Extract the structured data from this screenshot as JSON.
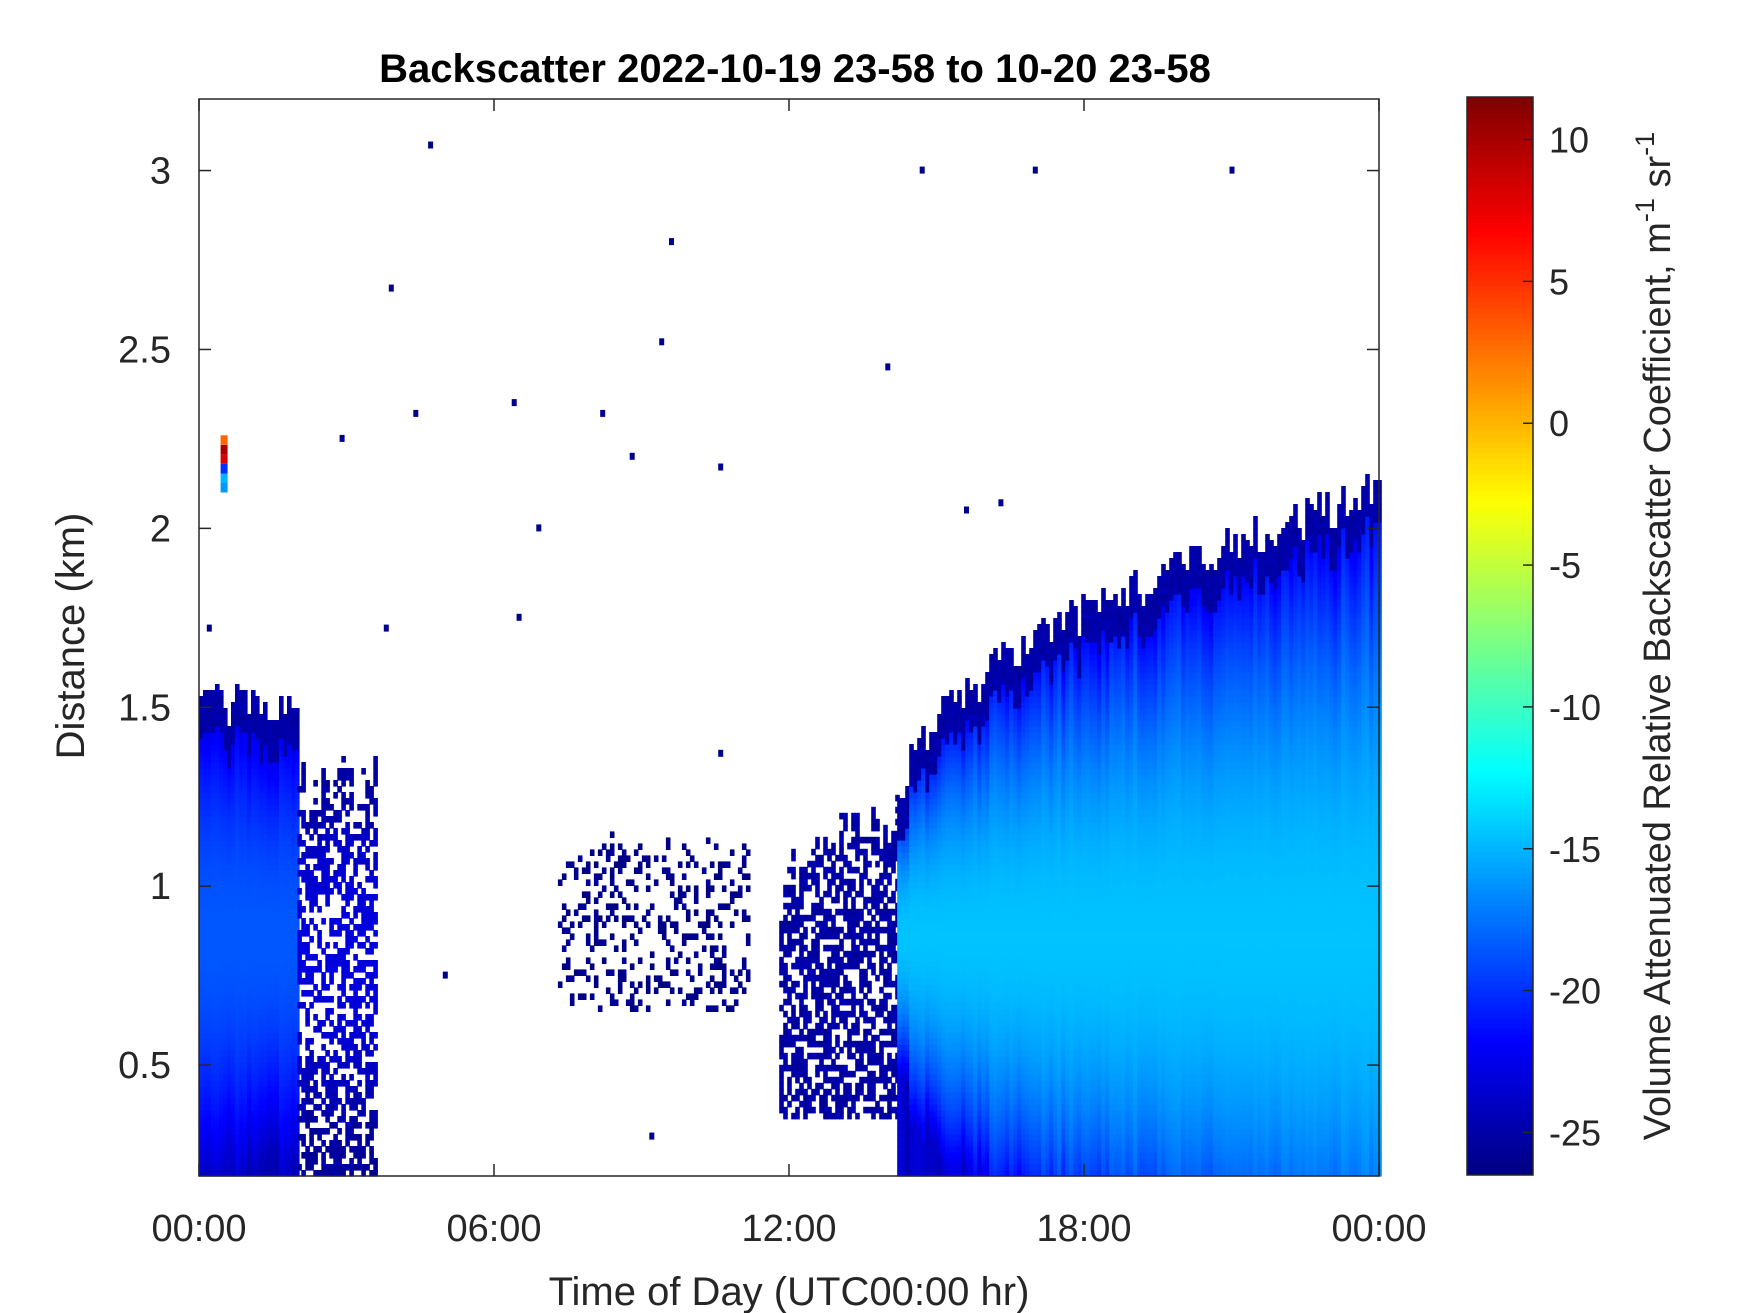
{
  "chart_data": {
    "type": "heatmap",
    "title": "Backscatter 2022-10-19 23-58 to 10-20 23-58",
    "xlabel": "Time of Day (UTC00:00 hr)",
    "ylabel": "Distance (km)",
    "colorbar_label": "Volume Attenuated Relative Backscatter Coefficient, m",
    "colorbar_label_sup1": "-1",
    "colorbar_label_mid": " sr",
    "colorbar_label_sup2": "-1",
    "x_range_hours": [
      0,
      24
    ],
    "x_ticks": [
      {
        "value": 0,
        "label": "00:00"
      },
      {
        "value": 6,
        "label": "06:00"
      },
      {
        "value": 12,
        "label": "12:00"
      },
      {
        "value": 18,
        "label": "18:00"
      },
      {
        "value": 24,
        "label": "00:00"
      }
    ],
    "y_range_km": [
      0.19,
      3.2
    ],
    "y_ticks": [
      {
        "value": 0.5,
        "label": "0.5"
      },
      {
        "value": 1,
        "label": "1"
      },
      {
        "value": 1.5,
        "label": "1.5"
      },
      {
        "value": 2,
        "label": "2"
      },
      {
        "value": 2.5,
        "label": "2.5"
      },
      {
        "value": 3,
        "label": "3"
      }
    ],
    "color_range": [
      -26.5,
      11.5
    ],
    "colormap": "jet",
    "colorbar_ticks": [
      {
        "value": 10,
        "label": "10"
      },
      {
        "value": 5,
        "label": "5"
      },
      {
        "value": 0,
        "label": "0"
      },
      {
        "value": -5,
        "label": "-5"
      },
      {
        "value": -10,
        "label": "-10"
      },
      {
        "value": -15,
        "label": "-15"
      },
      {
        "value": -20,
        "label": "-20"
      },
      {
        "value": -25,
        "label": "-25"
      }
    ],
    "regions": [
      {
        "name": "night-layer",
        "t_start": 0.0,
        "t_end": 2.0,
        "top_km": 1.5,
        "peak_km": 0.85,
        "peak_value": -18.5,
        "edge_value": -24
      },
      {
        "name": "night-layer-fringe",
        "t_start": 2.0,
        "t_end": 3.6,
        "top_km": 1.3,
        "peak_km": 0.8,
        "peak_value": -23,
        "edge_value": -25.5,
        "sparse": 0.55
      },
      {
        "name": "morning-patches",
        "t_start": 7.3,
        "t_end": 11.2,
        "top_km": 1.1,
        "bottom_km": 0.65,
        "peak_value": -25.5,
        "sparse": 0.25
      },
      {
        "name": "midday-rising",
        "t_start": 11.8,
        "t_end": 14.2,
        "top_start_km": 1.0,
        "top_end_km": 1.2,
        "bottom_km": 0.35,
        "peak_value": -24.5,
        "sparse": 0.6
      },
      {
        "name": "afternoon-layer",
        "t_start": 14.2,
        "t_end": 24.0,
        "top_start_km": 1.2,
        "top_end_km": 2.1,
        "peak_km": 0.85,
        "peak_value": -14.5,
        "edge_value": -23.5
      }
    ],
    "noise_points": [
      {
        "t": 4.7,
        "km": 3.07,
        "v": -26
      },
      {
        "t": 14.7,
        "km": 3.0,
        "v": -26
      },
      {
        "t": 17.0,
        "km": 3.0,
        "v": -26
      },
      {
        "t": 21.0,
        "km": 3.0,
        "v": -26
      },
      {
        "t": 9.6,
        "km": 2.8,
        "v": -26
      },
      {
        "t": 3.9,
        "km": 2.67,
        "v": -26
      },
      {
        "t": 9.4,
        "km": 2.52,
        "v": -26
      },
      {
        "t": 14.0,
        "km": 2.45,
        "v": -26
      },
      {
        "t": 6.4,
        "km": 2.35,
        "v": -26
      },
      {
        "t": 4.4,
        "km": 2.32,
        "v": -26
      },
      {
        "t": 8.2,
        "km": 2.32,
        "v": -26
      },
      {
        "t": 2.9,
        "km": 2.25,
        "v": -26
      },
      {
        "t": 8.8,
        "km": 2.2,
        "v": -26
      },
      {
        "t": 10.6,
        "km": 2.17,
        "v": -26
      },
      {
        "t": 15.6,
        "km": 2.05,
        "v": -26
      },
      {
        "t": 16.3,
        "km": 2.07,
        "v": -26
      },
      {
        "t": 6.9,
        "km": 2.0,
        "v": -26
      },
      {
        "t": 3.8,
        "km": 1.72,
        "v": -26
      },
      {
        "t": 6.5,
        "km": 1.75,
        "v": -26
      },
      {
        "t": 10.6,
        "km": 1.37,
        "v": -26
      },
      {
        "t": 5.0,
        "km": 0.75,
        "v": -26
      },
      {
        "t": 9.2,
        "km": 0.3,
        "v": -26
      },
      {
        "t": 0.2,
        "km": 1.72,
        "v": -26
      }
    ],
    "cloud_column": {
      "t": 0.5,
      "km_bottom": 2.1,
      "km_top": 2.26,
      "values": [
        -16,
        -15,
        -20,
        8,
        10,
        3
      ]
    }
  }
}
